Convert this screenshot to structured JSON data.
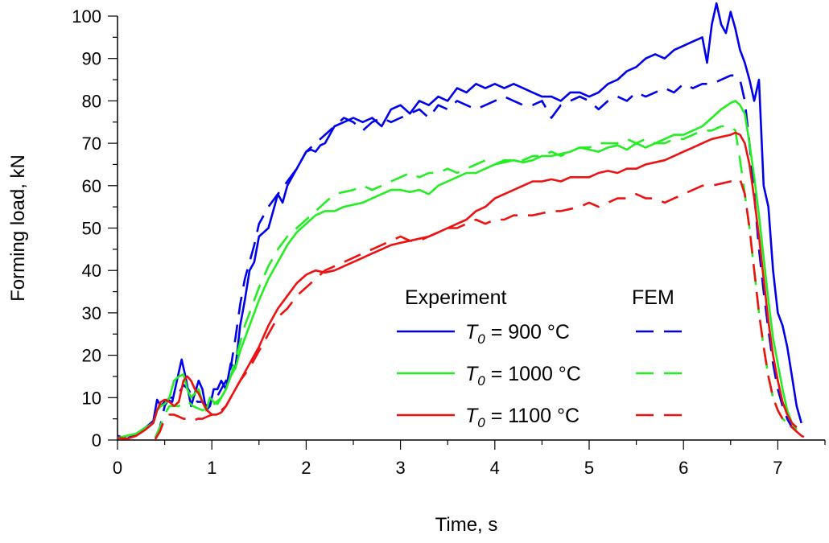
{
  "chart_data": {
    "type": "line",
    "title": "",
    "xlabel": "Time, s",
    "ylabel": "Forming load, kN",
    "xlim": [
      0,
      7.5
    ],
    "ylim": [
      0,
      100
    ],
    "x_major_ticks": [
      0,
      1,
      2,
      3,
      4,
      5,
      6,
      7
    ],
    "x_tick_labels": [
      "0",
      "1",
      "2",
      "3",
      "4",
      "5",
      "6",
      "7"
    ],
    "y_major_ticks": [
      0,
      10,
      20,
      30,
      40,
      50,
      60,
      70,
      80,
      90,
      100
    ],
    "y_tick_labels": [
      "0",
      "10",
      "20",
      "30",
      "40",
      "50",
      "60",
      "70",
      "80",
      "90",
      "100"
    ],
    "grid": false,
    "legend": {
      "position": "bottom-right",
      "experiment_header": "Experiment",
      "fem_header": "FEM",
      "entries": [
        {
          "var": "T",
          "sub": "0",
          "text": " =  900 °C",
          "color": "#0000ee"
        },
        {
          "var": "T",
          "sub": "0",
          "text": " = 1000 °C",
          "color": "#22ee22"
        },
        {
          "var": "T",
          "sub": "0",
          "text": " = 1100 °C",
          "color": "#ee1111"
        }
      ]
    },
    "series": [
      {
        "name": "Experiment T0 = 900 °C",
        "color": "#0000ee",
        "dash": false,
        "x": [
          0,
          0.1,
          0.2,
          0.3,
          0.38,
          0.42,
          0.46,
          0.52,
          0.58,
          0.64,
          0.68,
          0.72,
          0.78,
          0.82,
          0.86,
          0.9,
          0.94,
          0.98,
          1.02,
          1.06,
          1.1,
          1.15,
          1.2,
          1.25,
          1.3,
          1.35,
          1.4,
          1.45,
          1.5,
          1.55,
          1.6,
          1.65,
          1.7,
          1.75,
          1.8,
          1.85,
          1.9,
          1.95,
          2.0,
          2.05,
          2.1,
          2.15,
          2.2,
          2.3,
          2.4,
          2.5,
          2.6,
          2.7,
          2.8,
          2.9,
          3.0,
          3.1,
          3.2,
          3.3,
          3.4,
          3.5,
          3.6,
          3.7,
          3.8,
          3.9,
          4.0,
          4.1,
          4.2,
          4.3,
          4.4,
          4.5,
          4.6,
          4.7,
          4.8,
          4.9,
          5.0,
          5.1,
          5.2,
          5.3,
          5.4,
          5.5,
          5.6,
          5.7,
          5.8,
          5.9,
          6.0,
          6.1,
          6.2,
          6.25,
          6.3,
          6.35,
          6.4,
          6.45,
          6.5,
          6.55,
          6.6,
          6.65,
          6.7,
          6.75,
          6.8,
          6.85,
          6.9,
          6.95,
          7.0,
          7.05,
          7.1,
          7.15,
          7.2,
          7.25
        ],
        "y": [
          1,
          0.3,
          1.5,
          3,
          4.5,
          9.5,
          8,
          9.5,
          9,
          15,
          19,
          15,
          8,
          11,
          14,
          12,
          7,
          8,
          12,
          12,
          14,
          12,
          18,
          17,
          27,
          33,
          40,
          42,
          48,
          49,
          50,
          54,
          58,
          56,
          60,
          62,
          64,
          66,
          68,
          68.5,
          68,
          69.5,
          70,
          74,
          75,
          76,
          75,
          76,
          74,
          78,
          79,
          77,
          80,
          79,
          81,
          80,
          83,
          82,
          84,
          83,
          84,
          83,
          84,
          83,
          82,
          81,
          81,
          80,
          82,
          82,
          81,
          82,
          84,
          85,
          87,
          88,
          90,
          91,
          90,
          92,
          93,
          94,
          95,
          89,
          98,
          103,
          98,
          96,
          101,
          97,
          92,
          89,
          85,
          80,
          85,
          60,
          55,
          40,
          30,
          27,
          22,
          15,
          8,
          4
        ]
      },
      {
        "name": "FEM T0 = 900 °C",
        "color": "#0000ee",
        "dash": true,
        "x": [
          0.4,
          0.45,
          0.5,
          0.55,
          0.6,
          0.65,
          0.7,
          0.75,
          0.8,
          0.85,
          0.9,
          0.95,
          1.0,
          1.05,
          1.1,
          1.15,
          1.2,
          1.25,
          1.3,
          1.35,
          1.4,
          1.45,
          1.5,
          1.55,
          1.6,
          1.7,
          1.8,
          1.9,
          2.0,
          2.1,
          2.2,
          2.3,
          2.4,
          2.5,
          2.6,
          2.7,
          2.8,
          2.9,
          3.0,
          3.1,
          3.2,
          3.3,
          3.4,
          3.5,
          3.6,
          3.7,
          3.8,
          3.9,
          4.0,
          4.1,
          4.2,
          4.3,
          4.4,
          4.5,
          4.6,
          4.7,
          4.8,
          4.9,
          5.0,
          5.1,
          5.2,
          5.3,
          5.4,
          5.5,
          5.6,
          5.7,
          5.8,
          5.9,
          6.0,
          6.1,
          6.2,
          6.3,
          6.4,
          6.5,
          6.55,
          6.6,
          6.65,
          6.7,
          6.75,
          6.8,
          6.85,
          6.9,
          6.95,
          7.0,
          7.05,
          7.1,
          7.15,
          7.2,
          7.25
        ],
        "y": [
          0.5,
          3,
          8,
          10,
          10,
          11,
          13,
          12,
          10,
          9,
          9,
          8,
          9,
          10,
          12,
          14,
          17,
          24,
          32,
          38,
          42,
          46,
          51,
          53,
          55,
          58,
          61,
          64,
          68,
          70,
          72,
          74,
          76,
          75,
          73,
          75,
          76,
          75,
          76,
          77,
          78,
          76,
          79,
          78,
          80,
          79,
          78,
          79,
          80,
          81,
          80,
          79,
          79,
          80,
          76,
          79,
          80,
          81,
          80,
          78,
          80,
          81,
          80,
          82,
          81,
          82,
          83,
          82,
          84,
          83,
          84,
          84,
          85,
          86,
          86,
          85,
          80,
          70,
          58,
          45,
          35,
          26,
          18,
          12,
          8,
          5,
          3,
          2.5,
          3
        ]
      },
      {
        "name": "Experiment T0 = 1000 °C",
        "color": "#22ee22",
        "dash": false,
        "x": [
          0,
          0.1,
          0.2,
          0.3,
          0.38,
          0.42,
          0.46,
          0.5,
          0.55,
          0.6,
          0.65,
          0.7,
          0.74,
          0.78,
          0.82,
          0.86,
          0.9,
          0.94,
          0.98,
          1.02,
          1.06,
          1.1,
          1.15,
          1.2,
          1.25,
          1.3,
          1.35,
          1.4,
          1.5,
          1.6,
          1.7,
          1.8,
          1.9,
          2.0,
          2.1,
          2.2,
          2.3,
          2.4,
          2.5,
          2.6,
          2.7,
          2.8,
          2.9,
          3.0,
          3.1,
          3.2,
          3.3,
          3.4,
          3.5,
          3.6,
          3.7,
          3.8,
          3.9,
          4.0,
          4.1,
          4.2,
          4.3,
          4.4,
          4.5,
          4.6,
          4.7,
          4.8,
          4.9,
          5.0,
          5.1,
          5.2,
          5.3,
          5.4,
          5.5,
          5.6,
          5.7,
          5.8,
          5.9,
          6.0,
          6.1,
          6.2,
          6.3,
          6.4,
          6.5,
          6.55,
          6.6,
          6.65,
          6.7,
          6.75,
          6.8,
          6.85,
          6.9,
          6.95,
          7.0,
          7.05,
          7.1,
          7.15,
          7.2
        ],
        "y": [
          0.5,
          1,
          1.5,
          3,
          4,
          7,
          8,
          8.5,
          10,
          14,
          15,
          15.5,
          12,
          10,
          11,
          12,
          9,
          7,
          10,
          9,
          8.5,
          10,
          12,
          15,
          17,
          21,
          24,
          27,
          33,
          38,
          42,
          46,
          49,
          51,
          53,
          54,
          54,
          55,
          55.5,
          56,
          57,
          58,
          59,
          59,
          58.5,
          59,
          58,
          60,
          61,
          62,
          63,
          63,
          64,
          65,
          65.5,
          66,
          65.5,
          66,
          67,
          67,
          67.5,
          68,
          69,
          68.5,
          68,
          69,
          69.5,
          68.5,
          70,
          69,
          70,
          71,
          72,
          72,
          73,
          74,
          76,
          78,
          79.5,
          80,
          79,
          77,
          70,
          62,
          53,
          43,
          33,
          24,
          18,
          12,
          7,
          4,
          2.5
        ]
      },
      {
        "name": "FEM T0 = 1000 °C",
        "color": "#22ee22",
        "dash": true,
        "x": [
          0.4,
          0.45,
          0.5,
          0.55,
          0.6,
          0.65,
          0.7,
          0.75,
          0.8,
          0.85,
          0.9,
          0.95,
          1.0,
          1.05,
          1.1,
          1.15,
          1.2,
          1.25,
          1.3,
          1.35,
          1.4,
          1.5,
          1.6,
          1.7,
          1.8,
          1.9,
          2.0,
          2.1,
          2.2,
          2.3,
          2.4,
          2.5,
          2.6,
          2.7,
          2.8,
          2.9,
          3.0,
          3.1,
          3.2,
          3.3,
          3.4,
          3.5,
          3.6,
          3.7,
          3.8,
          3.9,
          4.0,
          4.1,
          4.2,
          4.3,
          4.4,
          4.5,
          4.6,
          4.7,
          4.8,
          4.9,
          5.0,
          5.1,
          5.2,
          5.3,
          5.4,
          5.5,
          5.6,
          5.7,
          5.8,
          5.9,
          6.0,
          6.1,
          6.2,
          6.3,
          6.4,
          6.5,
          6.55,
          6.6,
          6.65,
          6.7,
          6.75,
          6.8,
          6.85,
          6.9,
          6.95,
          7.0,
          7.05,
          7.1,
          7.15,
          7.2
        ],
        "y": [
          0.5,
          3,
          6,
          8,
          8,
          8,
          9,
          9,
          8,
          7.5,
          7,
          7.5,
          8,
          9,
          10,
          12,
          15,
          19,
          23,
          27,
          30,
          36,
          41,
          45,
          48,
          50,
          52,
          54,
          56,
          58,
          58.5,
          59,
          60,
          59,
          60,
          61,
          62,
          63,
          62,
          63,
          63,
          64,
          63,
          64,
          65,
          66,
          65,
          66,
          66,
          66,
          67,
          67,
          68,
          67,
          68,
          69,
          69,
          70,
          70,
          70,
          71,
          70,
          71,
          70,
          70,
          71,
          71,
          72,
          73,
          73,
          74,
          74,
          73,
          66,
          58,
          50,
          40,
          30,
          22,
          15,
          10,
          7,
          5,
          4,
          3,
          2
        ]
      },
      {
        "name": "Experiment T0 = 1100 °C",
        "color": "#ee1111",
        "dash": false,
        "x": [
          0,
          0.1,
          0.2,
          0.3,
          0.38,
          0.42,
          0.46,
          0.5,
          0.55,
          0.6,
          0.65,
          0.7,
          0.74,
          0.78,
          0.82,
          0.86,
          0.9,
          0.95,
          1.0,
          1.05,
          1.1,
          1.15,
          1.2,
          1.3,
          1.4,
          1.5,
          1.6,
          1.7,
          1.8,
          1.9,
          2.0,
          2.1,
          2.2,
          2.3,
          2.4,
          2.5,
          2.6,
          2.7,
          2.8,
          2.9,
          3.0,
          3.1,
          3.2,
          3.3,
          3.4,
          3.5,
          3.6,
          3.7,
          3.8,
          3.9,
          4.0,
          4.1,
          4.2,
          4.3,
          4.4,
          4.5,
          4.6,
          4.7,
          4.8,
          4.9,
          5.0,
          5.1,
          5.2,
          5.3,
          5.4,
          5.5,
          5.6,
          5.7,
          5.8,
          5.9,
          6.0,
          6.1,
          6.2,
          6.3,
          6.4,
          6.5,
          6.55,
          6.6,
          6.65,
          6.7,
          6.75,
          6.8,
          6.85,
          6.9,
          6.95,
          7.0,
          7.05,
          7.1,
          7.15,
          7.2
        ],
        "y": [
          0.5,
          0.3,
          1,
          2.5,
          4,
          7,
          9,
          9.5,
          9,
          8,
          9,
          14,
          15,
          14,
          12,
          11,
          9,
          7,
          6,
          6,
          6.5,
          8,
          10,
          14,
          18,
          22,
          27,
          31,
          34,
          37,
          39,
          40,
          39.5,
          40,
          41,
          42,
          43,
          44,
          45,
          46,
          46.5,
          47,
          47.5,
          48,
          49,
          50,
          51,
          52,
          54,
          55,
          57,
          58,
          59,
          60,
          61,
          61,
          61.5,
          61,
          62,
          62,
          62,
          63,
          63.5,
          63,
          64,
          64,
          65,
          65.5,
          66,
          67,
          68,
          69,
          70,
          71,
          71.5,
          72,
          72.5,
          72,
          70,
          65,
          57,
          48,
          38,
          28,
          20,
          14,
          9,
          6,
          4,
          3
        ]
      },
      {
        "name": "FEM T0 = 1100 °C",
        "color": "#ee1111",
        "dash": true,
        "x": [
          0.4,
          0.45,
          0.5,
          0.55,
          0.6,
          0.65,
          0.7,
          0.75,
          0.8,
          0.85,
          0.9,
          0.95,
          1.0,
          1.05,
          1.1,
          1.15,
          1.2,
          1.3,
          1.4,
          1.5,
          1.6,
          1.7,
          1.8,
          1.9,
          2.0,
          2.1,
          2.2,
          2.3,
          2.4,
          2.5,
          2.6,
          2.7,
          2.8,
          2.9,
          3.0,
          3.1,
          3.2,
          3.3,
          3.4,
          3.5,
          3.6,
          3.7,
          3.8,
          3.9,
          4.0,
          4.1,
          4.2,
          4.3,
          4.4,
          4.5,
          4.6,
          4.7,
          4.8,
          4.9,
          5.0,
          5.1,
          5.2,
          5.3,
          5.4,
          5.5,
          5.6,
          5.7,
          5.8,
          5.9,
          6.0,
          6.1,
          6.2,
          6.3,
          6.4,
          6.5,
          6.55,
          6.6,
          6.65,
          6.7,
          6.75,
          6.8,
          6.85,
          6.9,
          6.95,
          7.0,
          7.05,
          7.1,
          7.15,
          7.2,
          7.25,
          7.3,
          7.35
        ],
        "y": [
          0.2,
          2,
          5,
          6,
          6,
          5.5,
          5,
          5,
          4.5,
          5,
          5,
          5.5,
          6,
          6.5,
          7,
          8,
          10,
          14,
          17,
          21,
          25,
          29,
          31,
          34,
          36,
          38,
          40,
          41,
          42,
          43,
          44,
          45,
          46,
          47,
          48,
          47,
          47,
          48,
          49,
          50,
          50,
          51,
          52,
          51,
          52,
          52,
          53,
          53,
          53,
          53.5,
          54,
          54,
          54.5,
          55,
          56,
          55,
          56,
          57,
          57,
          58,
          57,
          57,
          56,
          57,
          58,
          59,
          60,
          60,
          60.5,
          61,
          61,
          61.5,
          58,
          50,
          40,
          30,
          22,
          15,
          10,
          7,
          5,
          4,
          3,
          2,
          1,
          0.5,
          0
        ]
      }
    ]
  }
}
